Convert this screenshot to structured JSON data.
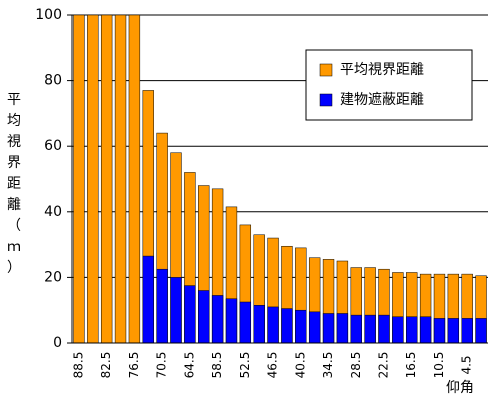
{
  "chart_data": {
    "type": "bar",
    "overlap": true,
    "ylabel": "平均視界距離（ｍ）",
    "xlabel": "仰角",
    "categories": [
      "88.5",
      null,
      "82.5",
      null,
      "76.5",
      null,
      "70.5",
      null,
      "64.5",
      null,
      "58.5",
      null,
      "52.5",
      null,
      "46.5",
      null,
      "40.5",
      null,
      "34.5",
      null,
      "28.5",
      null,
      "22.5",
      null,
      "16.5",
      null,
      "10.5",
      null,
      "4.5",
      null
    ],
    "series": [
      {
        "name": "平均視界距離",
        "color": "#ff9900",
        "values": [
          100,
          100,
          100,
          100,
          100,
          77,
          64,
          58,
          52,
          48,
          47,
          41.5,
          36,
          33,
          32,
          29.5,
          29,
          26,
          25.5,
          25,
          23,
          23,
          22.5,
          21.5,
          21.5,
          21,
          21,
          21,
          21,
          20.5
        ]
      },
      {
        "name": "建物遮蔽距離",
        "color": "#0000ff",
        "values": [
          0,
          0,
          0,
          0,
          0,
          26.5,
          22.5,
          20,
          17.5,
          16,
          14.5,
          13.5,
          12.5,
          11.5,
          11,
          10.5,
          10,
          9.5,
          9,
          9,
          8.5,
          8.5,
          8.5,
          8,
          8,
          8,
          7.5,
          7.5,
          7.5,
          7.5
        ]
      }
    ],
    "ylim": [
      0,
      100
    ],
    "yticks": [
      0,
      20,
      40,
      60,
      80,
      100
    ],
    "grid": true,
    "legend": "upper right"
  }
}
